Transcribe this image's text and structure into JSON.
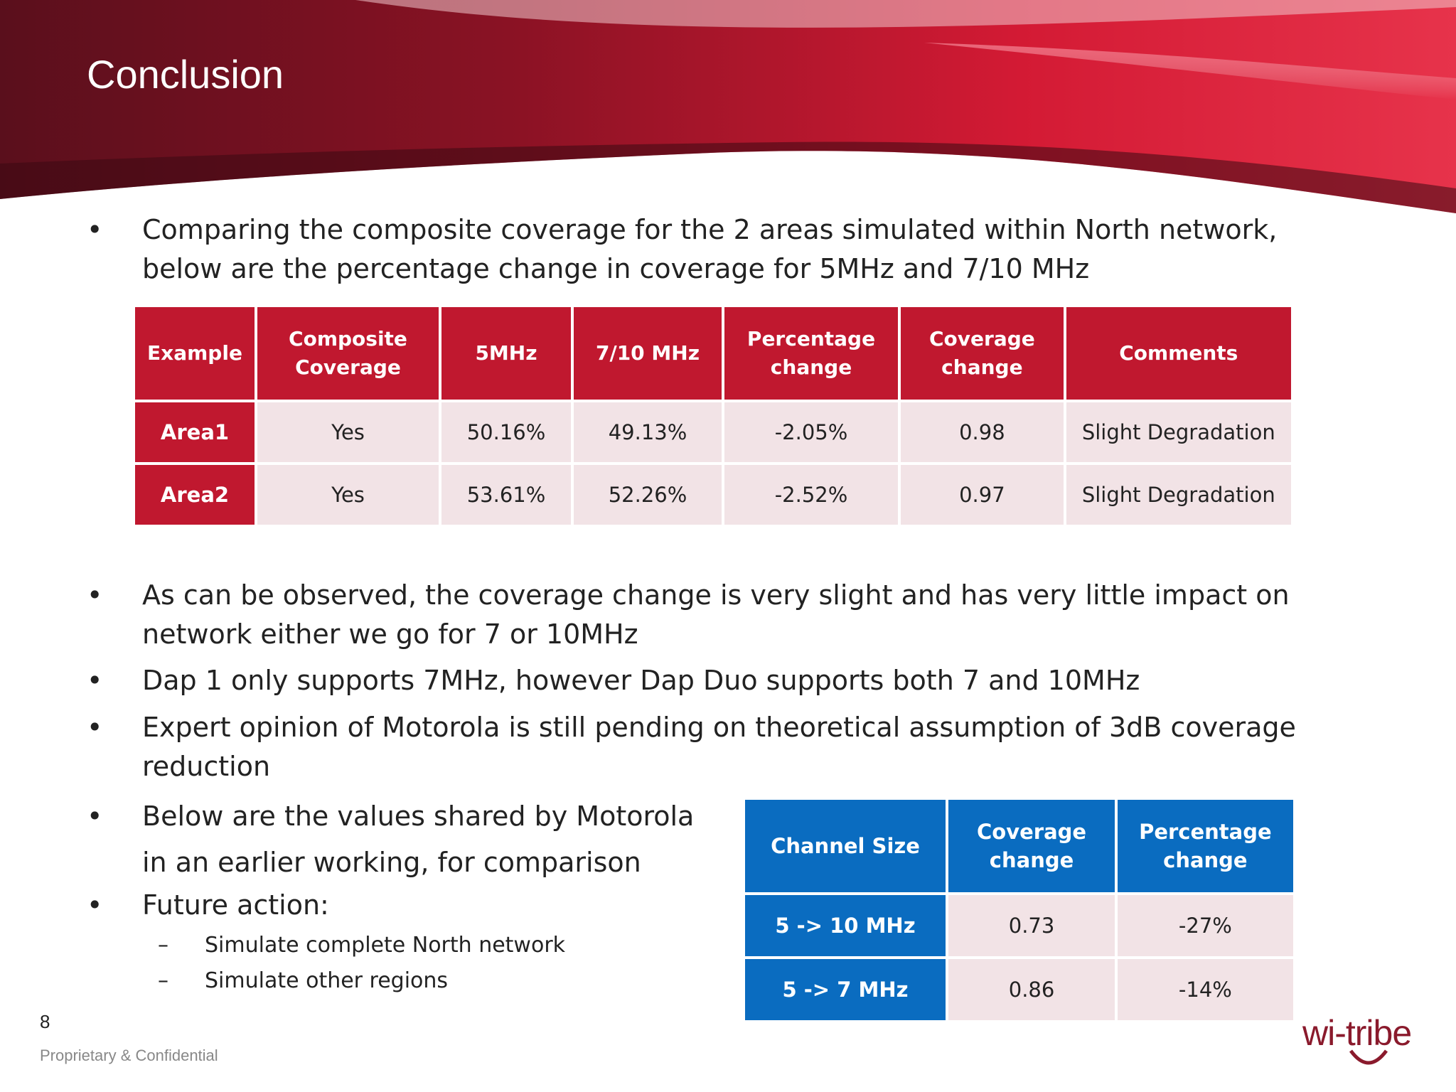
{
  "slide": {
    "title": "Conclusion",
    "page_number": "8",
    "footer": "Proprietary & Confidential",
    "logo_text": "wi-tribe"
  },
  "bullets": {
    "b1_line1": "Comparing the composite coverage for the 2 areas simulated within North network,",
    "b1_line2": "below are the percentage change in coverage for 5MHz and 7/10 MHz",
    "b2_line1": "As can be observed, the coverage change is very slight and has very little impact on",
    "b2_line2": "network either we go for 7 or 10MHz",
    "b3": "Dap 1 only supports 7MHz, however Dap Duo supports both 7 and 10MHz",
    "b4_line1": "Expert opinion of Motorola is still pending on theoretical assumption of 3dB coverage",
    "b4_line2": "reduction",
    "b5_line1": "Below are the values shared by Motorola",
    "b5_line2": "in an earlier working, for comparison",
    "b6": "Future action:",
    "sub1": "Simulate complete North network",
    "sub2": "Simulate other regions",
    "bullet_symbol": "•",
    "dash_symbol": "–"
  },
  "table1": {
    "headers": [
      "Example",
      "Composite Coverage",
      "5MHz",
      "7/10 MHz",
      "Percentage change",
      "Coverage change",
      "Comments"
    ],
    "rows": [
      [
        "Area1",
        "Yes",
        "50.16%",
        "49.13%",
        "-2.05%",
        "0.98",
        "Slight Degradation"
      ],
      [
        "Area2",
        "Yes",
        "53.61%",
        "52.26%",
        "-2.52%",
        "0.97",
        "Slight Degradation"
      ]
    ]
  },
  "table2": {
    "headers": [
      "Channel Size",
      "Coverage change",
      "Percentage change"
    ],
    "rows": [
      [
        "5 -> 10 MHz",
        "0.73",
        "-27%"
      ],
      [
        "5 -> 7 MHz",
        "0.86",
        "-14%"
      ]
    ]
  },
  "colors": {
    "banner_red": "#c0182f",
    "table2_blue": "#0a6cc0",
    "cell_pink": "#f2e3e6"
  }
}
